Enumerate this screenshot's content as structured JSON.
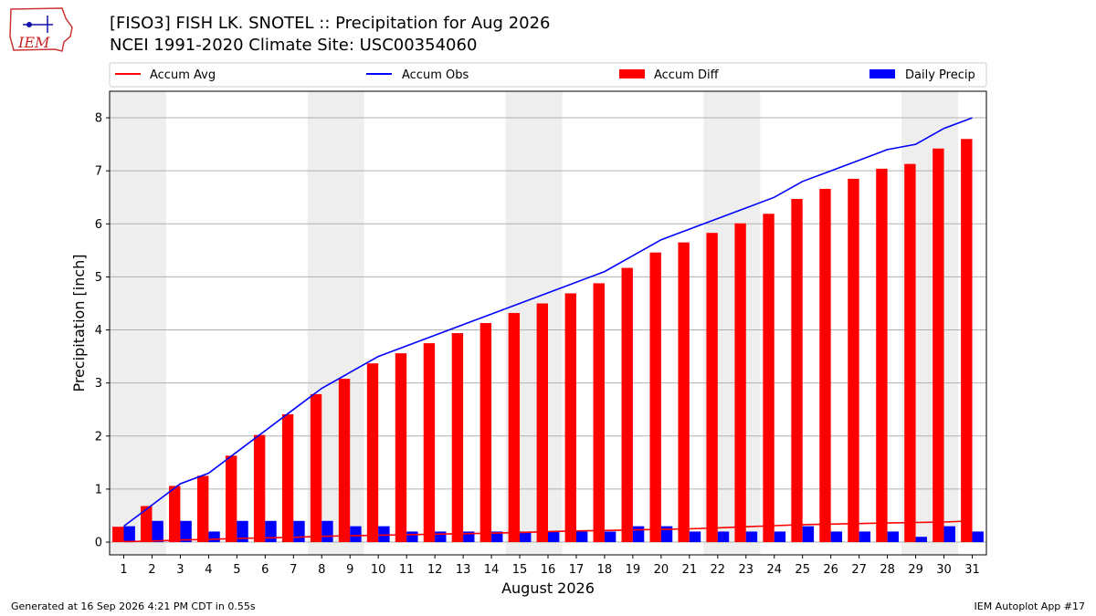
{
  "logo": {
    "text": "IEM",
    "icon": "iem-iowa-logo-icon"
  },
  "title": {
    "line1": "[FISO3] FISH LK. SNOTEL :: Precipitation for Aug 2026",
    "line2": "NCEI 1991-2020 Climate Site: USC00354060"
  },
  "footer": {
    "left": "Generated at 16 Sep 2026 4:21 PM CDT in 0.55s",
    "right": "IEM Autoplot App #17"
  },
  "colors": {
    "accum_avg": "#ff0000",
    "accum_obs": "#0000ff",
    "accum_diff": "#ff0000",
    "daily_precip": "#0000ff",
    "weekend_shade": "#eeeeee",
    "grid": "#b0b0b0"
  },
  "chart_data": {
    "type": "bar",
    "xlabel": "August 2026",
    "ylabel": "Precipitation [inch]",
    "ylim": [
      -0.24,
      8.5
    ],
    "yticks": [
      "0",
      "1",
      "2",
      "3",
      "4",
      "5",
      "6",
      "7",
      "8"
    ],
    "categories": [
      "1",
      "2",
      "3",
      "4",
      "5",
      "6",
      "7",
      "8",
      "9",
      "10",
      "11",
      "12",
      "13",
      "14",
      "15",
      "16",
      "17",
      "18",
      "19",
      "20",
      "21",
      "22",
      "23",
      "24",
      "25",
      "26",
      "27",
      "28",
      "29",
      "30",
      "31"
    ],
    "grid": true,
    "legend_position": "top",
    "shaded_day_ranges": [
      [
        1,
        2
      ],
      [
        8,
        9
      ],
      [
        15,
        16
      ],
      [
        22,
        23
      ],
      [
        29,
        30
      ]
    ],
    "series": [
      {
        "name": "Accum Avg",
        "kind": "line",
        "values": [
          0.01,
          0.02,
          0.04,
          0.05,
          0.07,
          0.08,
          0.09,
          0.11,
          0.12,
          0.13,
          0.14,
          0.15,
          0.16,
          0.17,
          0.18,
          0.2,
          0.21,
          0.22,
          0.23,
          0.24,
          0.25,
          0.27,
          0.29,
          0.31,
          0.33,
          0.34,
          0.35,
          0.36,
          0.37,
          0.38,
          0.4
        ]
      },
      {
        "name": "Accum Obs",
        "kind": "line",
        "values": [
          0.3,
          0.7,
          1.1,
          1.3,
          1.7,
          2.1,
          2.5,
          2.9,
          3.2,
          3.5,
          3.7,
          3.9,
          4.1,
          4.3,
          4.5,
          4.7,
          4.9,
          5.1,
          5.4,
          5.7,
          5.9,
          6.1,
          6.3,
          6.5,
          6.8,
          7.0,
          7.2,
          7.4,
          7.5,
          7.8,
          8.0
        ]
      },
      {
        "name": "Accum Diff",
        "kind": "bar",
        "values": [
          0.29,
          0.68,
          1.06,
          1.25,
          1.63,
          2.02,
          2.41,
          2.79,
          3.08,
          3.37,
          3.56,
          3.75,
          3.94,
          4.13,
          4.32,
          4.5,
          4.69,
          4.88,
          5.17,
          5.46,
          5.65,
          5.83,
          6.01,
          6.19,
          6.47,
          6.66,
          6.85,
          7.04,
          7.13,
          7.42,
          7.6
        ]
      },
      {
        "name": "Daily Precip",
        "kind": "bar",
        "values": [
          0.3,
          0.4,
          0.4,
          0.2,
          0.4,
          0.4,
          0.4,
          0.4,
          0.3,
          0.3,
          0.2,
          0.2,
          0.2,
          0.2,
          0.2,
          0.2,
          0.2,
          0.2,
          0.3,
          0.3,
          0.2,
          0.2,
          0.2,
          0.2,
          0.3,
          0.2,
          0.2,
          0.2,
          0.1,
          0.3,
          0.2
        ]
      }
    ]
  }
}
